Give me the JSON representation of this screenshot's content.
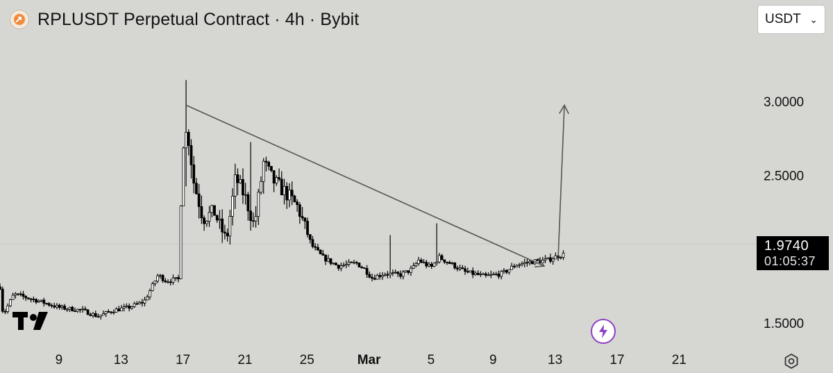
{
  "header": {
    "title": "RPLUSDT Perpetual Contract · 4h · Bybit",
    "symbol_icon": "rocket-icon"
  },
  "currency_select": {
    "value": "USDT",
    "icon": "chevron-down-icon"
  },
  "price_label": {
    "price": "1.9740",
    "countdown": "01:05:37"
  },
  "badges": {
    "bolt": "lightning-icon",
    "logo": "tradingview-logo",
    "settings": "gear-icon"
  },
  "colors": {
    "background": "#d6d6d2",
    "candle_up_fill": "#ffffff",
    "candle_down_fill": "#000000",
    "candle_outline": "#000000",
    "trend_line": "#555555",
    "accent_purple": "#8e3fc4"
  },
  "chart_data": {
    "type": "candlestick",
    "interval": "4h",
    "y_axis": {
      "ticks": [
        "3.0000",
        "2.5000",
        "1.5000"
      ],
      "range": [
        1.33,
        3.4
      ],
      "side": "right"
    },
    "x_axis": {
      "ticks": [
        "9",
        "13",
        "17",
        "21",
        "25",
        "Mar",
        "5",
        "9",
        "13",
        "17",
        "21"
      ],
      "tick_days": [
        0,
        4,
        8,
        12,
        16,
        20,
        24,
        28,
        32,
        36,
        40
      ],
      "range_days": [
        -3.8,
        45.0
      ]
    },
    "anchors": [
      [
        -3.8,
        1.74
      ],
      [
        -3.6,
        1.55
      ],
      [
        -2.9,
        1.69
      ],
      [
        -1.5,
        1.65
      ],
      [
        0.0,
        1.6
      ],
      [
        1.5,
        1.58
      ],
      [
        2.5,
        1.54
      ],
      [
        3.5,
        1.58
      ],
      [
        4.5,
        1.6
      ],
      [
        5.5,
        1.64
      ],
      [
        6.4,
        1.82
      ],
      [
        6.9,
        1.78
      ],
      [
        7.7,
        1.79
      ],
      [
        8.0,
        2.72
      ],
      [
        8.3,
        2.8
      ],
      [
        8.7,
        2.45
      ],
      [
        9.3,
        2.2
      ],
      [
        10.0,
        2.25
      ],
      [
        10.8,
        2.05
      ],
      [
        11.4,
        2.48
      ],
      [
        12.0,
        2.35
      ],
      [
        12.6,
        2.15
      ],
      [
        13.2,
        2.58
      ],
      [
        13.8,
        2.46
      ],
      [
        14.6,
        2.38
      ],
      [
        15.4,
        2.28
      ],
      [
        16.3,
        2.02
      ],
      [
        17.0,
        1.94
      ],
      [
        18.0,
        1.88
      ],
      [
        19.2,
        1.9
      ],
      [
        19.7,
        1.86
      ],
      [
        20.2,
        1.8
      ],
      [
        21.0,
        1.83
      ],
      [
        22.0,
        1.82
      ],
      [
        22.8,
        1.86
      ],
      [
        23.2,
        1.92
      ],
      [
        24.0,
        1.87
      ],
      [
        24.5,
        1.94
      ],
      [
        25.2,
        1.9
      ],
      [
        26.2,
        1.84
      ],
      [
        27.5,
        1.81
      ],
      [
        28.6,
        1.83
      ],
      [
        29.5,
        1.89
      ],
      [
        30.5,
        1.91
      ],
      [
        31.5,
        1.92
      ],
      [
        32.2,
        1.95
      ],
      [
        32.6,
        1.96
      ]
    ],
    "spikes": [
      {
        "day": 8.15,
        "high": 3.14,
        "low": 2.42
      },
      {
        "day": 12.4,
        "high": 2.72,
        "low": 2.12
      },
      {
        "day": 24.35,
        "high": 2.17,
        "low": 1.9
      },
      {
        "day": 21.3,
        "high": 2.09,
        "low": 1.86
      }
    ],
    "annotations": [
      {
        "type": "trendline",
        "from": {
          "day": 8.2,
          "price": 2.97
        },
        "to": {
          "day": 31.3,
          "price": 1.88
        },
        "arrowhead": true
      },
      {
        "type": "trendline",
        "from": {
          "day": 32.2,
          "price": 1.94
        },
        "to": {
          "day": 32.6,
          "price": 2.97
        },
        "arrowhead": true
      }
    ],
    "last_price": 1.974,
    "grid": false,
    "legend": "none"
  }
}
